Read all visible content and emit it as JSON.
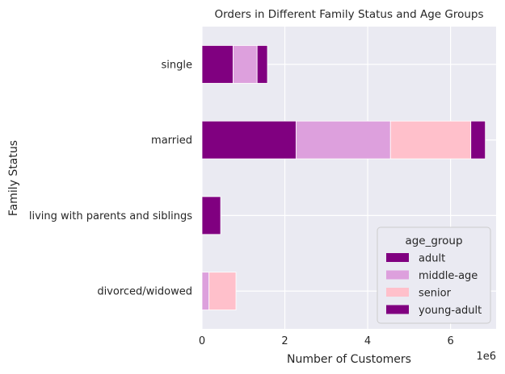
{
  "chart_data": {
    "type": "bar",
    "orientation": "horizontal",
    "stacked": true,
    "title": "Orders in Different Family Status and Age Groups",
    "xlabel": "Number of Customers",
    "ylabel": "Family Status",
    "x_multiplier_label": "1e6",
    "xlim": [
      0,
      7.1
    ],
    "x_ticks": [
      0,
      2,
      4,
      6
    ],
    "categories": [
      "single",
      "married",
      "living with parents and siblings",
      "divorced/widowed"
    ],
    "legend": {
      "title": "age_group",
      "placement": "lower-right"
    },
    "grid": true,
    "series": [
      {
        "name": "adult",
        "color": "#800080",
        "values": [
          0.75,
          2.27,
          0.0,
          0.0
        ]
      },
      {
        "name": "middle-age",
        "color": "#dda0dd",
        "values": [
          0.58,
          2.28,
          0.0,
          0.17
        ]
      },
      {
        "name": "senior",
        "color": "#ffc0cb",
        "values": [
          0.0,
          1.94,
          0.0,
          0.65
        ]
      },
      {
        "name": "young-adult",
        "color": "#800080",
        "values": [
          0.25,
          0.35,
          0.45,
          0.0
        ]
      }
    ]
  }
}
